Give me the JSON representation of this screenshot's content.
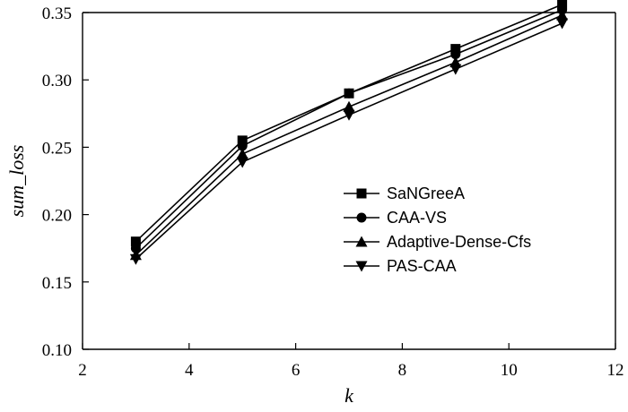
{
  "chart_data": {
    "type": "line",
    "title": "",
    "xlabel": "k",
    "ylabel": "sum_loss",
    "xlim": [
      2,
      12
    ],
    "ylim": [
      0.1,
      0.35
    ],
    "xticks": [
      2,
      4,
      6,
      8,
      10,
      12
    ],
    "yticks": [
      0.1,
      0.15,
      0.2,
      0.25,
      0.3,
      0.35
    ],
    "ytick_labels": [
      "0.10",
      "0.15",
      "0.20",
      "0.25",
      "0.30",
      "0.35"
    ],
    "x": [
      3,
      5,
      7,
      9,
      11
    ],
    "grid": false,
    "legend_position": "center-right",
    "series": [
      {
        "name": "SaNGreeA",
        "marker": "square",
        "values": [
          0.18,
          0.255,
          0.29,
          0.323,
          0.356
        ]
      },
      {
        "name": "CAA-VS",
        "marker": "circle",
        "values": [
          0.175,
          0.251,
          0.29,
          0.319,
          0.352
        ]
      },
      {
        "name": "Adaptive-Dense-Cfs",
        "marker": "triangle-up",
        "values": [
          0.17,
          0.245,
          0.28,
          0.313,
          0.348
        ]
      },
      {
        "name": "PAS-CAA",
        "marker": "triangle-down",
        "values": [
          0.167,
          0.239,
          0.274,
          0.308,
          0.342
        ]
      }
    ]
  }
}
